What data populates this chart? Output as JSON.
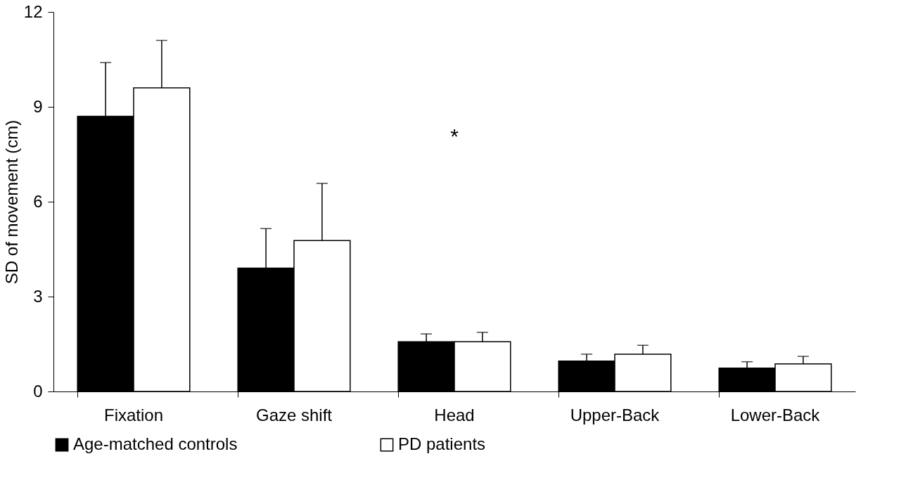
{
  "chart_data": {
    "type": "bar",
    "ylabel": "SD of movement (cm)",
    "categories": [
      "Fixation",
      "Gaze shift",
      "Head",
      "Upper-Back",
      "Lower-Back"
    ],
    "series": [
      {
        "name": "Age-matched controls",
        "color": "#000000",
        "values": [
          8.7,
          3.9,
          1.57,
          0.96,
          0.74
        ],
        "errors": [
          [
            8.7,
            10.4
          ],
          [
            3.9,
            5.15
          ],
          [
            1.57,
            1.82
          ],
          [
            0.96,
            1.18
          ],
          [
            0.74,
            0.94
          ]
        ]
      },
      {
        "name": "PD patients",
        "color": "#ffffff",
        "values": [
          9.6,
          4.77,
          1.57,
          1.18,
          0.87
        ],
        "errors": [
          [
            9.6,
            11.1
          ],
          [
            4.77,
            6.58
          ],
          [
            1.57,
            1.87
          ],
          [
            1.18,
            1.46
          ],
          [
            0.87,
            1.11
          ]
        ]
      }
    ],
    "ylim": [
      0,
      12
    ],
    "yticks": [
      0,
      3,
      6,
      9,
      12
    ],
    "grid": false,
    "legend": "bottom",
    "annotations": [
      "*"
    ]
  }
}
